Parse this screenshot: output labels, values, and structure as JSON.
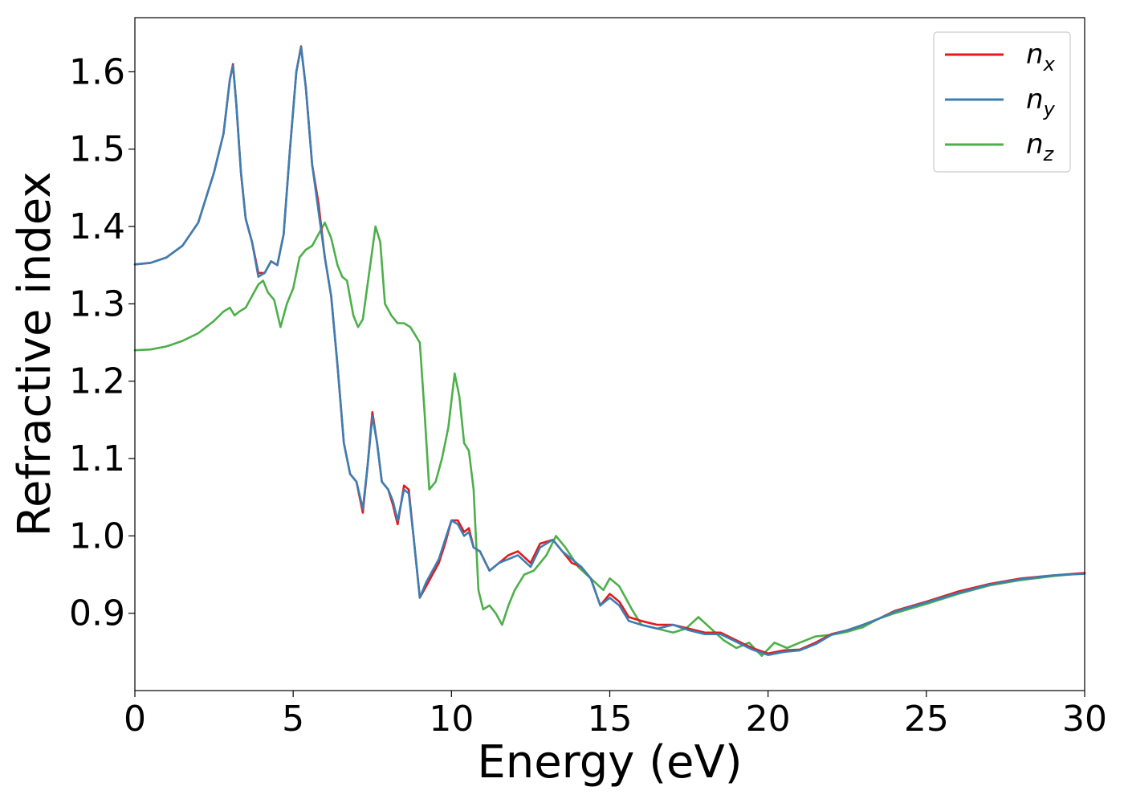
{
  "chart_data": {
    "type": "line",
    "xlabel": "Energy (eV)",
    "ylabel": "Refractive index",
    "xlim": [
      0,
      30
    ],
    "ylim": [
      0.8,
      1.67
    ],
    "xticks": [
      0,
      5,
      10,
      15,
      20,
      25,
      30
    ],
    "xtick_labels": [
      "0",
      "5",
      "10",
      "15",
      "20",
      "25",
      "30"
    ],
    "yticks": [
      0.9,
      1.0,
      1.1,
      1.2,
      1.3,
      1.4,
      1.5,
      1.6
    ],
    "ytick_labels": [
      "0.9",
      "1.0",
      "1.1",
      "1.2",
      "1.3",
      "1.4",
      "1.5",
      "1.6"
    ],
    "grid": false,
    "legend_position": "top-right",
    "series": [
      {
        "name": "n_x",
        "label_main": "n",
        "label_sub": "x",
        "color": "#e41a1c",
        "x": [
          0,
          0.5,
          1,
          1.5,
          2,
          2.5,
          2.8,
          3.0,
          3.1,
          3.2,
          3.35,
          3.5,
          3.7,
          3.9,
          4.1,
          4.3,
          4.5,
          4.7,
          4.9,
          5.1,
          5.25,
          5.4,
          5.6,
          5.8,
          6.0,
          6.2,
          6.4,
          6.6,
          6.8,
          7.0,
          7.2,
          7.35,
          7.5,
          7.65,
          7.8,
          8.0,
          8.15,
          8.3,
          8.5,
          8.65,
          8.8,
          9.0,
          9.2,
          9.4,
          9.6,
          9.8,
          10.0,
          10.2,
          10.4,
          10.55,
          10.7,
          10.9,
          11.2,
          11.5,
          11.8,
          12.1,
          12.5,
          12.8,
          13.2,
          13.5,
          13.8,
          14.1,
          14.4,
          14.7,
          15.0,
          15.3,
          15.6,
          16.0,
          16.5,
          17.0,
          17.5,
          18.0,
          18.5,
          19.0,
          19.5,
          20.0,
          20.5,
          21.0,
          21.5,
          22,
          22.5,
          23,
          23.5,
          24,
          25,
          26,
          27,
          28,
          29,
          30
        ],
        "y": [
          1.351,
          1.353,
          1.36,
          1.375,
          1.405,
          1.47,
          1.52,
          1.59,
          1.61,
          1.56,
          1.47,
          1.41,
          1.38,
          1.34,
          1.34,
          1.355,
          1.35,
          1.39,
          1.5,
          1.6,
          1.633,
          1.58,
          1.48,
          1.43,
          1.36,
          1.31,
          1.22,
          1.12,
          1.08,
          1.07,
          1.03,
          1.09,
          1.16,
          1.12,
          1.07,
          1.06,
          1.04,
          1.015,
          1.065,
          1.06,
          1.0,
          0.92,
          0.935,
          0.95,
          0.965,
          0.99,
          1.02,
          1.02,
          1.005,
          1.01,
          0.985,
          0.98,
          0.955,
          0.965,
          0.975,
          0.98,
          0.965,
          0.99,
          0.995,
          0.98,
          0.965,
          0.96,
          0.945,
          0.91,
          0.925,
          0.915,
          0.895,
          0.89,
          0.885,
          0.885,
          0.88,
          0.875,
          0.875,
          0.865,
          0.855,
          0.848,
          0.852,
          0.853,
          0.862,
          0.873,
          0.878,
          0.885,
          0.893,
          0.903,
          0.915,
          0.928,
          0.938,
          0.945,
          0.949,
          0.952
        ]
      },
      {
        "name": "n_y",
        "label_main": "n",
        "label_sub": "y",
        "color": "#3a7fb4",
        "x": [
          0,
          0.5,
          1,
          1.5,
          2,
          2.5,
          2.8,
          3.0,
          3.1,
          3.2,
          3.35,
          3.5,
          3.7,
          3.9,
          4.1,
          4.3,
          4.5,
          4.7,
          4.9,
          5.1,
          5.25,
          5.4,
          5.6,
          5.8,
          6.0,
          6.2,
          6.4,
          6.6,
          6.8,
          7.0,
          7.2,
          7.35,
          7.5,
          7.65,
          7.8,
          8.0,
          8.15,
          8.3,
          8.5,
          8.65,
          8.8,
          9.0,
          9.2,
          9.4,
          9.6,
          9.8,
          10.0,
          10.2,
          10.4,
          10.55,
          10.7,
          10.9,
          11.2,
          11.5,
          11.8,
          12.1,
          12.5,
          12.8,
          13.2,
          13.5,
          13.8,
          14.1,
          14.4,
          14.7,
          15.0,
          15.3,
          15.6,
          16.0,
          16.5,
          17.0,
          17.5,
          18.0,
          18.5,
          19.0,
          19.5,
          20.0,
          20.5,
          21.0,
          21.5,
          22,
          22.5,
          23,
          23.5,
          24,
          25,
          26,
          27,
          28,
          29,
          30
        ],
        "y": [
          1.351,
          1.353,
          1.36,
          1.375,
          1.405,
          1.47,
          1.52,
          1.59,
          1.608,
          1.56,
          1.47,
          1.41,
          1.38,
          1.335,
          1.34,
          1.355,
          1.35,
          1.39,
          1.5,
          1.6,
          1.632,
          1.58,
          1.48,
          1.42,
          1.36,
          1.31,
          1.22,
          1.12,
          1.08,
          1.07,
          1.035,
          1.09,
          1.155,
          1.12,
          1.07,
          1.06,
          1.045,
          1.02,
          1.06,
          1.055,
          1.0,
          0.92,
          0.94,
          0.955,
          0.97,
          0.995,
          1.02,
          1.015,
          1.0,
          1.005,
          0.985,
          0.98,
          0.955,
          0.965,
          0.97,
          0.975,
          0.96,
          0.985,
          0.995,
          0.98,
          0.97,
          0.96,
          0.945,
          0.91,
          0.92,
          0.91,
          0.89,
          0.885,
          0.88,
          0.885,
          0.878,
          0.873,
          0.873,
          0.863,
          0.853,
          0.846,
          0.85,
          0.852,
          0.86,
          0.872,
          0.878,
          0.885,
          0.893,
          0.902,
          0.914,
          0.926,
          0.937,
          0.944,
          0.949,
          0.951
        ]
      },
      {
        "name": "n_z",
        "label_main": "n",
        "label_sub": "z",
        "color": "#4daf4a",
        "x": [
          0,
          0.5,
          1,
          1.5,
          2,
          2.5,
          2.8,
          3.0,
          3.15,
          3.3,
          3.5,
          3.7,
          3.9,
          4.05,
          4.2,
          4.4,
          4.6,
          4.8,
          5.0,
          5.2,
          5.4,
          5.6,
          5.8,
          6.0,
          6.2,
          6.4,
          6.55,
          6.7,
          6.9,
          7.05,
          7.2,
          7.4,
          7.6,
          7.75,
          7.9,
          8.1,
          8.3,
          8.5,
          8.7,
          8.85,
          9.0,
          9.15,
          9.3,
          9.5,
          9.7,
          9.9,
          10.1,
          10.25,
          10.4,
          10.55,
          10.7,
          10.85,
          11.0,
          11.2,
          11.4,
          11.6,
          11.8,
          12.0,
          12.3,
          12.6,
          13.0,
          13.3,
          13.6,
          14.0,
          14.4,
          14.8,
          15.0,
          15.3,
          15.7,
          16.0,
          16.5,
          17.0,
          17.4,
          17.8,
          18.2,
          18.6,
          19.0,
          19.4,
          19.8,
          20.2,
          20.6,
          21.0,
          21.5,
          22,
          22.5,
          23,
          23.5,
          24,
          25,
          26,
          27,
          28,
          29,
          30
        ],
        "y": [
          1.24,
          1.241,
          1.245,
          1.252,
          1.262,
          1.278,
          1.29,
          1.295,
          1.285,
          1.29,
          1.295,
          1.31,
          1.325,
          1.33,
          1.315,
          1.305,
          1.27,
          1.3,
          1.32,
          1.36,
          1.37,
          1.375,
          1.39,
          1.405,
          1.385,
          1.35,
          1.335,
          1.33,
          1.285,
          1.27,
          1.28,
          1.34,
          1.4,
          1.38,
          1.3,
          1.285,
          1.275,
          1.275,
          1.27,
          1.26,
          1.25,
          1.16,
          1.06,
          1.07,
          1.1,
          1.14,
          1.21,
          1.18,
          1.12,
          1.11,
          1.06,
          0.93,
          0.905,
          0.91,
          0.9,
          0.885,
          0.91,
          0.93,
          0.95,
          0.955,
          0.975,
          1.0,
          0.985,
          0.96,
          0.945,
          0.93,
          0.945,
          0.935,
          0.905,
          0.885,
          0.88,
          0.875,
          0.88,
          0.895,
          0.88,
          0.865,
          0.855,
          0.862,
          0.845,
          0.862,
          0.855,
          0.862,
          0.87,
          0.872,
          0.876,
          0.882,
          0.893,
          0.9,
          0.912,
          0.925,
          0.936,
          0.943,
          0.948,
          0.952
        ]
      }
    ]
  }
}
